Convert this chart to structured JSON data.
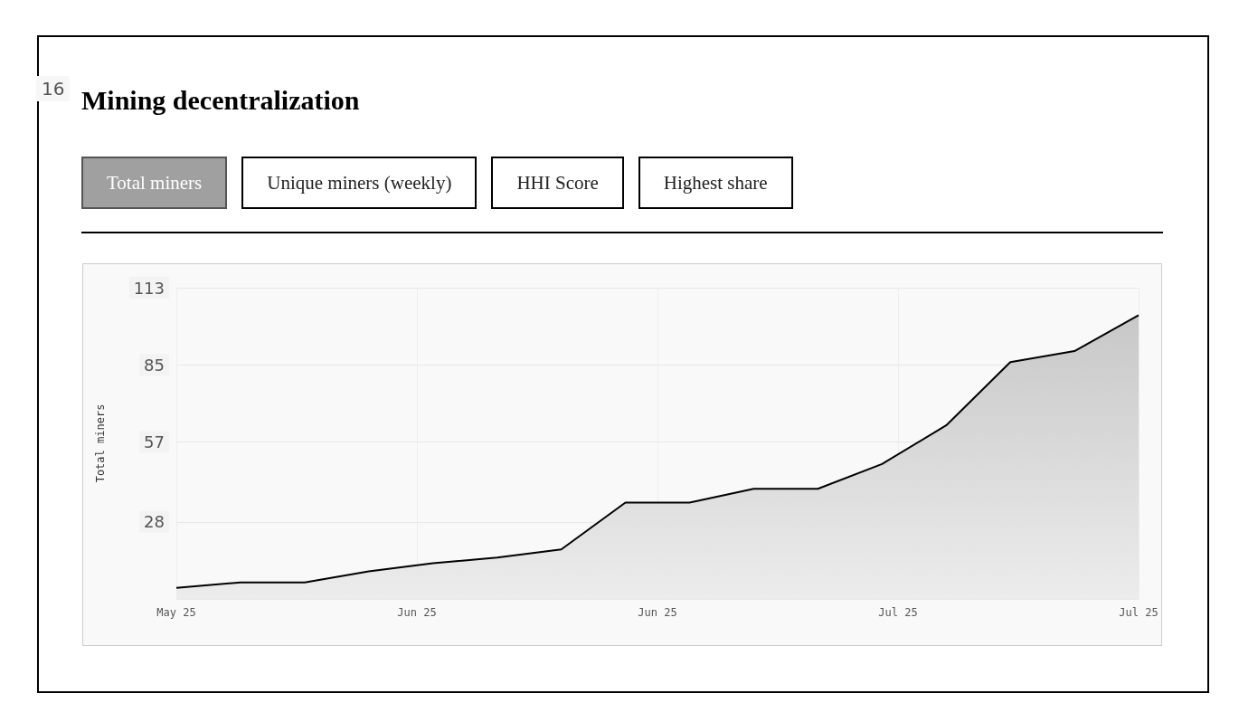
{
  "chart_data": {
    "type": "area",
    "title": "Mining decentralization",
    "ylabel": "Total miners",
    "annotations": [
      "Total miners",
      "Unique miners (weekly)",
      "HHI Score",
      "Highest share",
      "16"
    ],
    "x": [
      "2025-05-31",
      "2025-06-04",
      "2025-06-08",
      "2025-06-12",
      "2025-06-16",
      "2025-06-20",
      "2025-06-24",
      "2025-06-28",
      "2025-07-02",
      "2025-07-06",
      "2025-07-10",
      "2025-07-14",
      "2025-07-18",
      "2025-07-22",
      "2025-07-26",
      "2025-07-30"
    ],
    "series": [
      {
        "color": "#000000",
        "values": [
          4,
          6,
          6,
          10,
          13,
          15,
          18,
          35,
          35,
          40,
          40,
          49,
          63,
          86,
          90,
          103
        ]
      }
    ],
    "xlim": [
      "2025-05-31",
      "2025-07-30"
    ],
    "xticks": [
      {
        "value": "2025-05-31",
        "label": "May 25"
      },
      {
        "value": "2025-06-15",
        "label": "Jun 25"
      },
      {
        "value": "2025-06-30",
        "label": "Jun 25"
      },
      {
        "value": "2025-07-15",
        "label": "Jul 25"
      },
      {
        "value": "2025-07-30",
        "label": "Jul 25"
      }
    ],
    "ylim": [
      0,
      113
    ],
    "yticks": [
      {
        "value": 0,
        "label": null
      },
      28,
      57,
      85,
      113
    ],
    "grid": true,
    "marker": "none",
    "line_style": "solid"
  }
}
